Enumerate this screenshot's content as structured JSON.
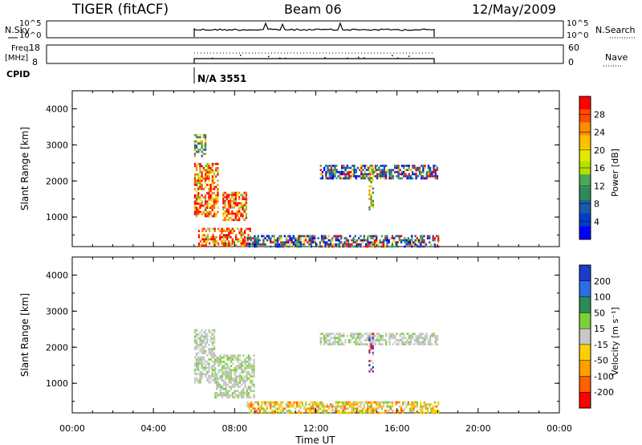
{
  "header": {
    "title_left": "TIGER (fitACF)",
    "title_center": "Beam 06",
    "title_right": "12/May/2009"
  },
  "strips": {
    "nsky_label": "N.Sky",
    "nsky_ticks": [
      "10^5",
      "10^0"
    ],
    "nsearch_label": "N.Search",
    "freq_label_1": "Freq.",
    "freq_label_2": "[MHz]",
    "freq_ticks": [
      "18",
      "8"
    ],
    "nave_ticks": [
      "60",
      "0"
    ],
    "nave_label": "Nave",
    "cpid_label": "CPID",
    "cpid_value": "N/A 3551"
  },
  "chart_data": [
    {
      "type": "heatmap",
      "ylabel": "Slant Range [km]",
      "xlabel": "Time UT",
      "x_ticks": [
        "00:00",
        "04:00",
        "08:00",
        "12:00",
        "16:00",
        "20:00",
        "00:00"
      ],
      "y_ticks": [
        "1000",
        "2000",
        "3000",
        "4000"
      ],
      "xlim": [
        0,
        24
      ],
      "ylim": [
        180,
        4500
      ],
      "colorbar": {
        "label": "Power [dB]",
        "ticks": [
          "28",
          "24",
          "20",
          "16",
          "12",
          "8",
          "4"
        ],
        "colors": [
          "#ff0000",
          "#ff4a00",
          "#ff8c00",
          "#ffc000",
          "#e6e600",
          "#b4e000",
          "#4aa858",
          "#2e8b57",
          "#1a5aa8",
          "#003cc8",
          "#0000ff"
        ]
      },
      "regions": [
        {
          "t": [
            6.0,
            6.6
          ],
          "r": [
            2700,
            3300
          ],
          "level": "mixed"
        },
        {
          "t": [
            6.0,
            7.2
          ],
          "r": [
            1000,
            2500
          ],
          "level": "high"
        },
        {
          "t": [
            7.4,
            8.6
          ],
          "r": [
            900,
            1700
          ],
          "level": "high"
        },
        {
          "t": [
            6.2,
            8.8
          ],
          "r": [
            180,
            700
          ],
          "level": "high"
        },
        {
          "t": [
            8.6,
            18.0
          ],
          "r": [
            180,
            500
          ],
          "level": "low"
        },
        {
          "t": [
            12.2,
            18.0
          ],
          "r": [
            2050,
            2450
          ],
          "level": "low"
        },
        {
          "t": [
            14.6,
            14.8
          ],
          "r": [
            1200,
            2400
          ],
          "level": "mid"
        }
      ]
    },
    {
      "type": "heatmap",
      "ylabel": "Slant Range [km]",
      "xlabel": "Time UT",
      "x_ticks": [
        "00:00",
        "04:00",
        "08:00",
        "12:00",
        "16:00",
        "20:00",
        "00:00"
      ],
      "y_ticks": [
        "1000",
        "2000",
        "3000",
        "4000"
      ],
      "xlim": [
        0,
        24
      ],
      "ylim": [
        180,
        4500
      ],
      "colorbar": {
        "label": "Velocity [m s⁻¹]",
        "ticks": [
          "200",
          "100",
          "50",
          "15",
          "-15",
          "-50",
          "-100",
          "-200"
        ],
        "colors": [
          "#1a3cc8",
          "#2a6ee6",
          "#2e8b57",
          "#7ad13a",
          "#c8c8c8",
          "#ffd000",
          "#ffa000",
          "#ff6000",
          "#ff0000"
        ]
      },
      "regions": [
        {
          "t": [
            6.0,
            7.0
          ],
          "r": [
            1000,
            2500
          ],
          "level": "gray"
        },
        {
          "t": [
            7.0,
            9.0
          ],
          "r": [
            600,
            1800
          ],
          "level": "gray-green"
        },
        {
          "t": [
            8.6,
            18.0
          ],
          "r": [
            180,
            500
          ],
          "level": "orange"
        },
        {
          "t": [
            12.2,
            18.0
          ],
          "r": [
            2100,
            2400
          ],
          "level": "gray"
        },
        {
          "t": [
            14.6,
            14.8
          ],
          "r": [
            1300,
            2400
          ],
          "level": "purple"
        }
      ]
    }
  ]
}
